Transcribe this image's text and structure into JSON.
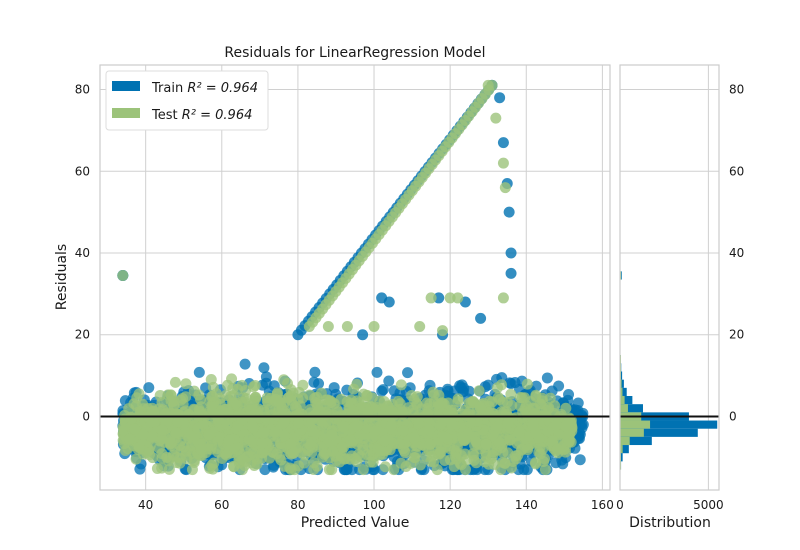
{
  "chart_data": {
    "type": "scatter",
    "title": "Residuals for LinearRegression Model",
    "xlabel": "Predicted Value",
    "ylabel": "Residuals",
    "xlim": [
      28,
      162
    ],
    "ylim": [
      -18,
      86
    ],
    "xticks": [
      40,
      60,
      80,
      100,
      120,
      140,
      160
    ],
    "yticks": [
      0,
      20,
      40,
      60,
      80
    ],
    "grid": true,
    "zero_line": 0,
    "legend_position": "top-left",
    "series": [
      {
        "name": "Train R² = 0.964",
        "legend_prefix": "Train",
        "legend_r2": "R² = 0.964",
        "color": "#0072b2",
        "cloud": {
          "x_range": [
            34,
            155
          ],
          "y_center": -3,
          "y_spread": 9
        },
        "diagonal": {
          "x": [
            80,
            131
          ],
          "y": [
            20,
            81
          ]
        },
        "tail": [
          [
            131,
            81
          ],
          [
            133,
            78
          ],
          [
            134,
            67
          ],
          [
            135,
            57
          ],
          [
            135.5,
            50
          ],
          [
            136,
            40
          ],
          [
            136,
            35
          ]
        ],
        "points": [
          [
            34,
            34.5
          ],
          [
            34,
            34.5
          ],
          [
            117,
            29
          ],
          [
            124,
            28
          ],
          [
            118,
            20
          ],
          [
            128,
            24
          ],
          [
            97,
            20
          ],
          [
            102,
            29
          ],
          [
            104,
            28
          ]
        ]
      },
      {
        "name": "Test R² = 0.964",
        "legend_prefix": "Test",
        "legend_r2": "R² = 0.964",
        "color": "#9cc37a",
        "cloud": {
          "x_range": [
            34,
            152
          ],
          "y_center": -3,
          "y_spread": 8
        },
        "diagonal": {
          "x": [
            83,
            131
          ],
          "y": [
            22,
            81
          ]
        },
        "tail": [
          [
            130,
            81
          ],
          [
            132,
            73
          ],
          [
            134,
            62
          ],
          [
            134.5,
            56
          ]
        ],
        "points": [
          [
            34,
            34.5
          ],
          [
            115,
            29
          ],
          [
            120,
            29
          ],
          [
            122,
            29
          ],
          [
            134,
            29
          ],
          [
            88,
            22
          ],
          [
            93,
            22
          ],
          [
            100,
            22
          ],
          [
            112,
            22
          ],
          [
            118,
            21
          ]
        ]
      }
    ],
    "distribution": {
      "xlabel": "Distribution",
      "xlim": [
        0,
        5600
      ],
      "xticks": [
        0,
        5000
      ],
      "bins": [
        {
          "y": 34.5,
          "train": 100,
          "test": 60
        },
        {
          "y": 14,
          "train": 40,
          "test": 20
        },
        {
          "y": 12,
          "train": 70,
          "test": 30
        },
        {
          "y": 10,
          "train": 120,
          "test": 50
        },
        {
          "y": 8,
          "train": 220,
          "test": 90
        },
        {
          "y": 6,
          "train": 380,
          "test": 140
        },
        {
          "y": 4,
          "train": 700,
          "test": 260
        },
        {
          "y": 2,
          "train": 1300,
          "test": 450
        },
        {
          "y": 0,
          "train": 3900,
          "test": 1200
        },
        {
          "y": -2,
          "train": 5500,
          "test": 1700
        },
        {
          "y": -4,
          "train": 4400,
          "test": 1350
        },
        {
          "y": -6,
          "train": 1800,
          "test": 550
        },
        {
          "y": -8,
          "train": 500,
          "test": 150
        },
        {
          "y": -10,
          "train": 150,
          "test": 40
        },
        {
          "y": -12,
          "train": 60,
          "test": 15
        }
      ]
    }
  }
}
